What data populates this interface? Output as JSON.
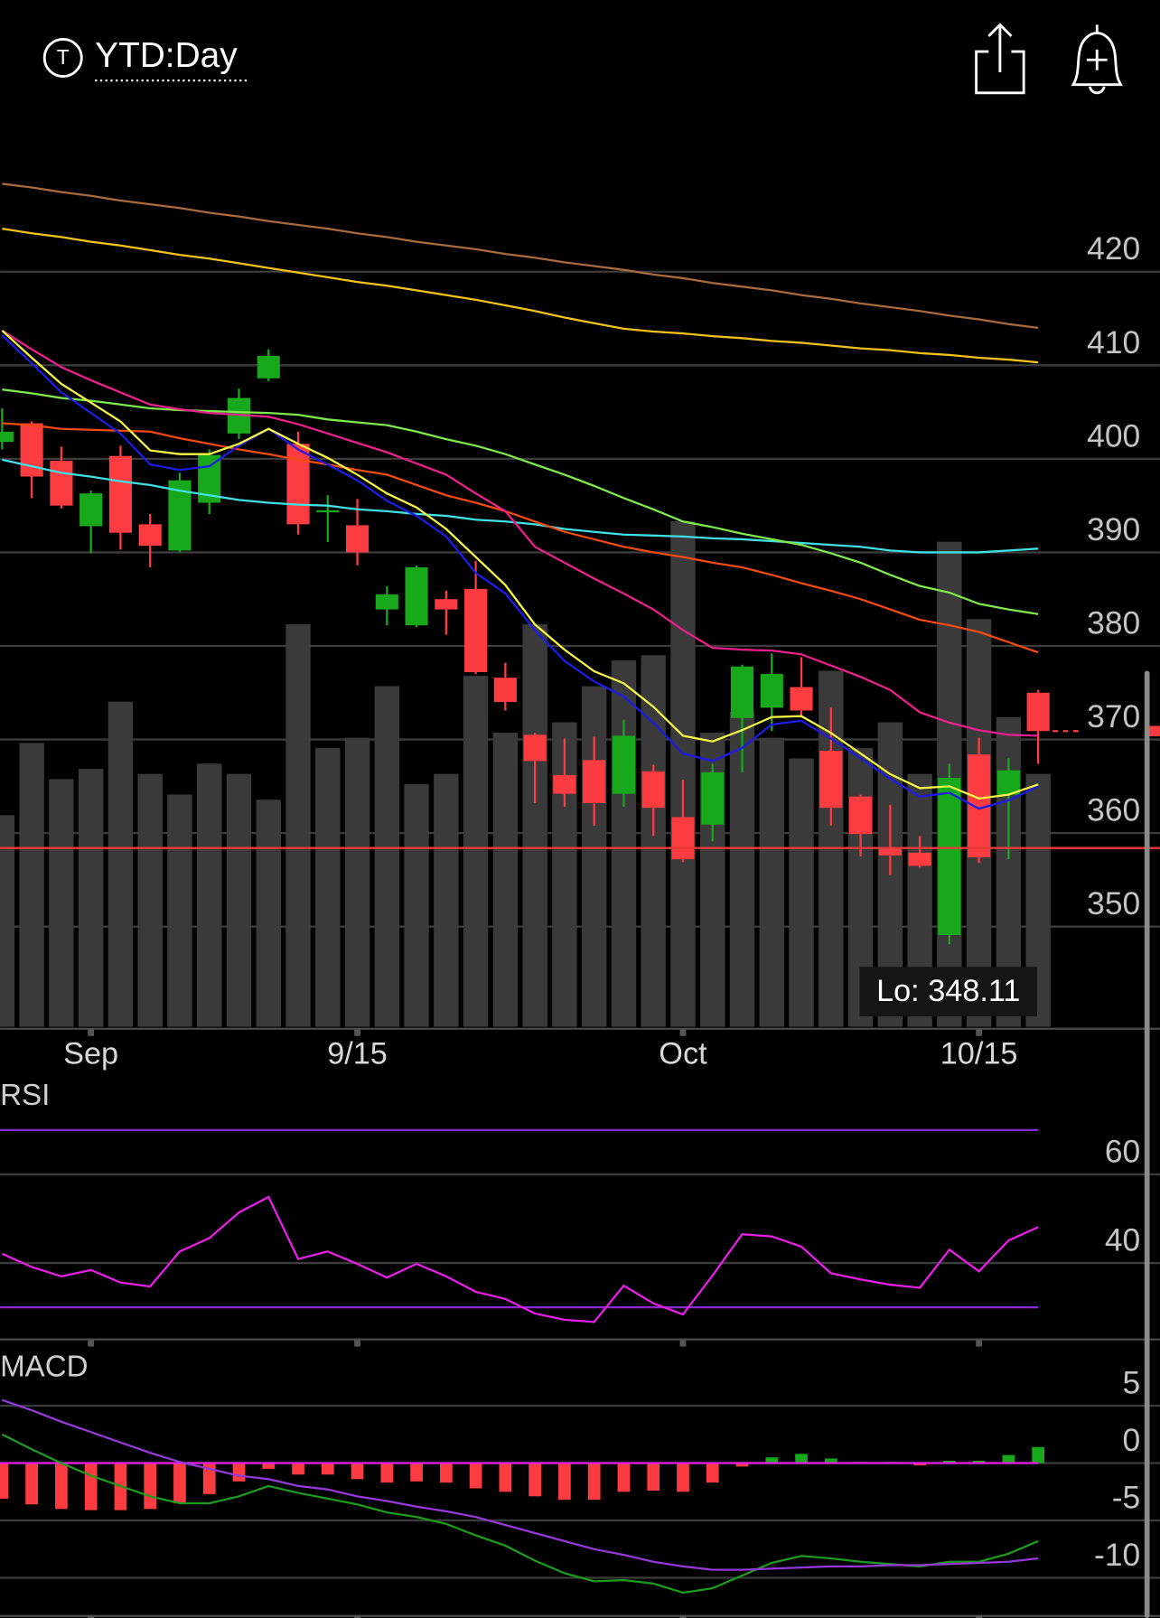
{
  "header": {
    "icon_label": "T",
    "title": "YTD:Day"
  },
  "chart_data": [
    {
      "type": "candlestick",
      "categories": [
        null,
        null,
        null,
        "Sep",
        null,
        null,
        null,
        null,
        null,
        null,
        null,
        null,
        "9/15",
        null,
        null,
        null,
        null,
        null,
        null,
        null,
        null,
        null,
        null,
        "Oct",
        null,
        null,
        null,
        null,
        null,
        null,
        null,
        null,
        null,
        "10/15",
        null,
        null
      ],
      "open": [
        401.8,
        403.8,
        399.8,
        392.8,
        400.3,
        393.0,
        390.2,
        395.3,
        402.7,
        408.6,
        401.6,
        394.3,
        392.9,
        383.9,
        382.2,
        385.0,
        386.1,
        376.6,
        370.5,
        366.2,
        367.8,
        364.2,
        366.6,
        361.7,
        360.9,
        372.3,
        373.4,
        375.6,
        368.8,
        363.9,
        358.3,
        357.9,
        349.1,
        368.4,
        364.1,
        375.0
      ],
      "high": [
        405.4,
        404.0,
        401.3,
        396.6,
        401.4,
        394.1,
        398.5,
        401.0,
        407.5,
        411.7,
        402.9,
        396.1,
        395.7,
        386.4,
        388.6,
        385.9,
        389.1,
        378.2,
        370.7,
        370.1,
        370.3,
        372.1,
        367.3,
        365.7,
        367.4,
        378.0,
        379.2,
        378.8,
        373.4,
        364.1,
        363.0,
        359.7,
        367.4,
        370.2,
        368.0,
        375.3
      ],
      "low": [
        401.0,
        395.8,
        394.7,
        389.9,
        390.3,
        388.4,
        390.0,
        394.1,
        402.1,
        408.3,
        391.9,
        391.1,
        388.6,
        382.2,
        382.0,
        381.2,
        377.0,
        373.1,
        363.2,
        362.8,
        360.8,
        362.8,
        359.7,
        356.9,
        359.1,
        366.5,
        370.9,
        372.5,
        360.8,
        357.5,
        355.5,
        356.3,
        348.11,
        356.8,
        357.2,
        367.4
      ],
      "close": [
        402.9,
        398.1,
        395.0,
        396.3,
        392.1,
        390.7,
        397.7,
        400.4,
        406.5,
        411.0,
        393.0,
        394.5,
        390.0,
        385.5,
        388.4,
        383.9,
        377.2,
        374.0,
        367.7,
        364.2,
        363.2,
        370.4,
        362.7,
        357.2,
        366.5,
        377.8,
        377.0,
        373.1,
        362.7,
        359.9,
        357.6,
        356.5,
        365.9,
        357.4,
        366.7,
        370.9
      ],
      "up_color": "#17a81b",
      "down_color": "#fc3c40",
      "volume": {
        "color": "#3a3a3a",
        "values": [
          41,
          55,
          48,
          50,
          63,
          49,
          45,
          51,
          49,
          44,
          78,
          54,
          56,
          66,
          47,
          49,
          68,
          57,
          78,
          59,
          66,
          71,
          72,
          98,
          57,
          61,
          56,
          52,
          69,
          54,
          59,
          49,
          94,
          79,
          60,
          49
        ]
      },
      "overlays": [
        {
          "color": "#a86a3e",
          "values": [
            429.4,
            429.0,
            428.5,
            428.1,
            427.6,
            427.2,
            426.8,
            426.3,
            425.9,
            425.4,
            425.0,
            424.6,
            424.1,
            423.7,
            423.2,
            422.8,
            422.4,
            421.9,
            421.5,
            421.0,
            420.6,
            420.2,
            419.7,
            419.3,
            418.8,
            418.4,
            418.0,
            417.5,
            417.1,
            416.6,
            416.2,
            415.8,
            415.3,
            414.9,
            414.4,
            414.0
          ]
        },
        {
          "color": "#f2c21a",
          "values": [
            424.6,
            424.1,
            423.7,
            423.2,
            422.8,
            422.3,
            421.8,
            421.4,
            420.9,
            420.4,
            419.9,
            419.4,
            418.9,
            418.5,
            418.0,
            417.5,
            417.0,
            416.4,
            415.8,
            415.1,
            414.5,
            413.9,
            413.6,
            413.4,
            413.1,
            412.9,
            412.6,
            412.4,
            412.1,
            411.8,
            411.6,
            411.3,
            411.1,
            410.8,
            410.6,
            410.3
          ]
        },
        {
          "color": "#3fe0e6",
          "values": [
            399.9,
            399.2,
            398.5,
            398.1,
            397.6,
            397.2,
            396.6,
            396.1,
            395.6,
            395.3,
            395.1,
            395.0,
            394.6,
            394.4,
            394.1,
            393.9,
            393.5,
            393.3,
            393.0,
            392.5,
            392.2,
            391.9,
            391.8,
            391.7,
            391.5,
            391.4,
            391.2,
            391.0,
            390.8,
            390.6,
            390.2,
            390.0,
            390.0,
            390.0,
            390.2,
            390.4
          ]
        },
        {
          "color": "#7ee84c",
          "values": [
            407.4,
            407.0,
            406.5,
            406.2,
            405.8,
            405.4,
            405.2,
            405.1,
            405.0,
            404.9,
            404.7,
            404.2,
            403.9,
            403.6,
            402.9,
            402.1,
            401.4,
            400.5,
            399.4,
            398.3,
            397.1,
            395.8,
            394.6,
            393.3,
            392.7,
            392.0,
            391.4,
            390.8,
            389.9,
            388.9,
            387.6,
            386.4,
            385.7,
            384.5,
            383.9,
            383.4
          ]
        },
        {
          "color": "#f24a12",
          "values": [
            403.8,
            403.6,
            403.2,
            403.1,
            403.0,
            402.9,
            402.2,
            401.6,
            401.0,
            400.5,
            399.9,
            399.4,
            398.8,
            398.3,
            397.2,
            396.1,
            395.3,
            394.4,
            393.3,
            392.2,
            391.4,
            390.6,
            390.0,
            389.5,
            388.9,
            388.4,
            387.6,
            386.7,
            385.9,
            385.0,
            383.9,
            382.8,
            382.2,
            381.5,
            380.4,
            379.3
          ]
        },
        {
          "color": "#ea208c",
          "values": [
            413.7,
            411.7,
            409.8,
            408.4,
            407.1,
            405.8,
            405.3,
            404.9,
            404.7,
            404.5,
            403.7,
            402.7,
            401.7,
            400.7,
            399.5,
            398.3,
            396.3,
            394.4,
            390.6,
            388.9,
            387.2,
            385.6,
            383.9,
            381.7,
            379.8,
            379.6,
            379.5,
            379.1,
            377.9,
            376.7,
            375.3,
            372.9,
            371.8,
            371.0,
            370.5,
            370.4
          ]
        },
        {
          "color": "#1c1ce6",
          "values": [
            413.2,
            410.2,
            407.1,
            404.9,
            402.7,
            399.4,
            398.8,
            399.2,
            401.4,
            403.2,
            401.0,
            399.4,
            397.7,
            395.5,
            393.9,
            391.7,
            387.8,
            385.6,
            381.7,
            378.4,
            376.2,
            374.6,
            371.8,
            368.5,
            367.7,
            369.1,
            371.6,
            372.0,
            370.1,
            368.0,
            365.8,
            363.9,
            364.3,
            362.6,
            363.5,
            365.0
          ]
        },
        {
          "color": "#f6f644",
          "values": [
            413.7,
            410.8,
            408.0,
            406.0,
            404.0,
            400.9,
            400.5,
            400.5,
            401.6,
            403.2,
            401.6,
            400.1,
            398.3,
            396.3,
            394.8,
            392.5,
            389.5,
            386.5,
            382.3,
            379.6,
            377.3,
            376.0,
            373.5,
            370.4,
            369.8,
            371.0,
            372.4,
            372.5,
            370.7,
            368.5,
            366.3,
            364.8,
            365.0,
            363.7,
            364.1,
            365.2
          ]
        }
      ],
      "reference_line": {
        "value": 358.4,
        "color": "#e83a3a"
      },
      "annotation": "Lo: 348.11",
      "ylim": [
        339.3,
        434.7
      ],
      "yticks": [
        350,
        360,
        370,
        380,
        390,
        400,
        410,
        420
      ],
      "grid": true
    },
    {
      "type": "line",
      "title": "RSI",
      "series": [
        {
          "color": "#e61ee6",
          "values": [
            42.1,
            39.1,
            37.0,
            38.4,
            35.6,
            34.7,
            42.6,
            45.6,
            51.4,
            54.9,
            40.9,
            42.6,
            39.8,
            36.7,
            39.8,
            37.0,
            33.5,
            31.9,
            28.6,
            27.2,
            26.7,
            34.9,
            30.9,
            28.4,
            37.2,
            46.5,
            46.0,
            43.7,
            37.7,
            36.3,
            35.1,
            34.4,
            43.0,
            38.1,
            45.1,
            48.1
          ]
        }
      ],
      "bands": {
        "values": [
          70,
          30
        ],
        "color": "#8a2ad0"
      },
      "ylim": [
        23.0,
        80.5
      ],
      "yticks": [
        40,
        60
      ],
      "grid": true
    },
    {
      "type": "macd",
      "title": "MACD",
      "series": [
        {
          "color": "#1e9a1e",
          "values": [
            2.5,
            1.2,
            0,
            -1.1,
            -2.0,
            -2.9,
            -3.5,
            -3.5,
            -2.9,
            -2.0,
            -2.6,
            -3.1,
            -3.6,
            -4.3,
            -4.7,
            -5.3,
            -6.3,
            -7.2,
            -8.5,
            -9.6,
            -10.3,
            -10.2,
            -10.5,
            -11.3,
            -10.9,
            -9.8,
            -8.7,
            -8.1,
            -8.3,
            -8.6,
            -8.8,
            -9.0,
            -8.6,
            -8.6,
            -7.9,
            -6.8
          ]
        },
        {
          "color": "#9438d8",
          "values": [
            5.5,
            4.6,
            3.6,
            2.7,
            1.8,
            0.9,
            0.1,
            -0.5,
            -1.1,
            -1.4,
            -2.0,
            -2.3,
            -2.9,
            -3.3,
            -3.8,
            -4.2,
            -4.7,
            -5.4,
            -6.1,
            -6.8,
            -7.5,
            -8.0,
            -8.6,
            -9.0,
            -9.3,
            -9.3,
            -9.2,
            -9.1,
            -9.0,
            -9.0,
            -8.9,
            -8.9,
            -8.8,
            -8.7,
            -8.6,
            -8.3
          ]
        }
      ],
      "histogram": {
        "positive_color": "#17a81b",
        "negative_color": "#fc3c40",
        "values": [
          -3.1,
          -3.6,
          -4.0,
          -4.1,
          -4.1,
          -4.0,
          -3.5,
          -2.7,
          -1.6,
          -0.5,
          -1.0,
          -1.0,
          -1.4,
          -1.7,
          -1.6,
          -1.7,
          -2.2,
          -2.5,
          -2.9,
          -3.2,
          -3.2,
          -2.5,
          -2.4,
          -2.5,
          -1.7,
          -0.3,
          0.5,
          0.8,
          0.4,
          0.1,
          0.1,
          -0.2,
          0.2,
          0.2,
          0.7,
          1.4
        ]
      },
      "zero_line_color": "#e81ee8",
      "ylim": [
        -13.5,
        9.7
      ],
      "yticks": [
        5,
        0,
        -5,
        -10
      ],
      "grid": true
    }
  ]
}
